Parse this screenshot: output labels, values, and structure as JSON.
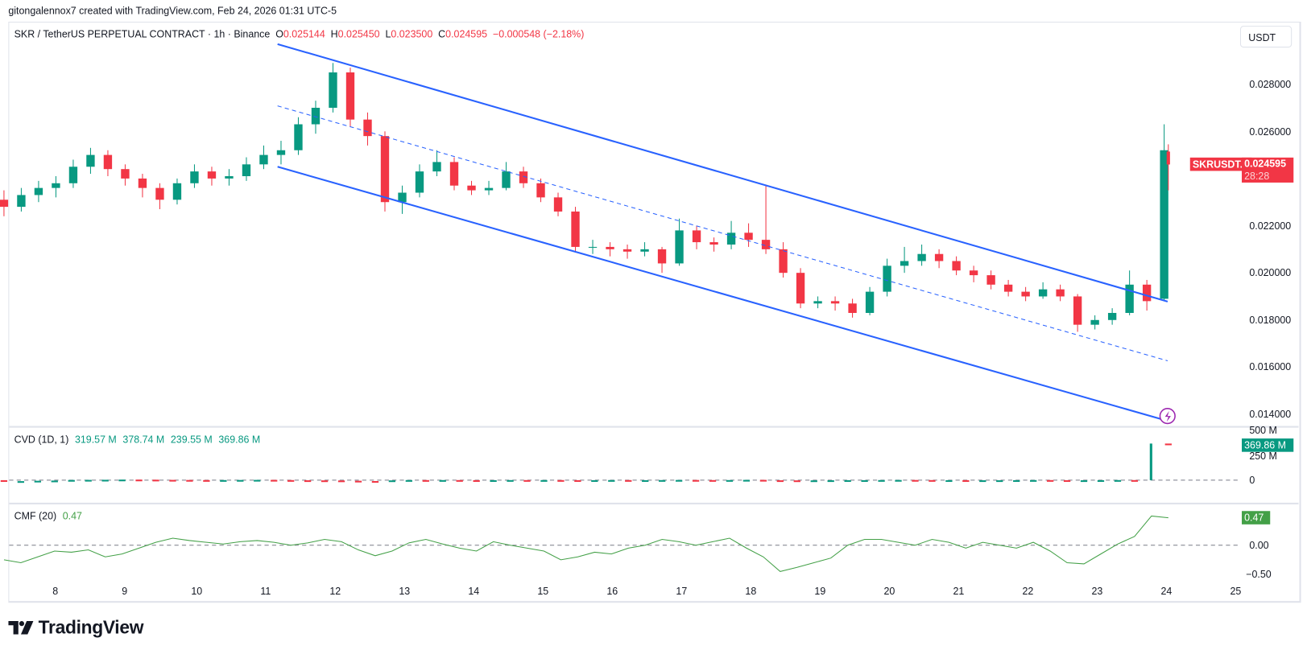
{
  "credit": "gitongalennox7 created with TradingView.com, Feb 24, 2026 01:31 UTC-5",
  "symbol_line": {
    "title": "SKR / TetherUS PERPETUAL CONTRACT · 1h · Binance",
    "o_label": "O",
    "o": "0.025144",
    "h_label": "H",
    "h": "0.025450",
    "l_label": "L",
    "l": "0.023500",
    "c_label": "C",
    "c": "0.024595",
    "change": "−0.000548 (−2.18%)"
  },
  "currency_button": "USDT",
  "price_tag": {
    "symbol": "SKRUSDT.P",
    "price": "0.024595",
    "countdown": "28:28"
  },
  "colors": {
    "up": "#089981",
    "down": "#f23645",
    "channel": "#2962ff",
    "cmf": "#43a047",
    "alert": "#9c27b0"
  },
  "alert_icon": "lightning-icon",
  "cvd": {
    "label": "CVD (1D, 1)",
    "values": [
      "319.57 M",
      "378.74 M",
      "239.55 M",
      "369.86 M"
    ],
    "tag": "369.86 M",
    "ticks": [
      "500 M",
      "250 M",
      "0"
    ]
  },
  "cmf": {
    "label": "CMF (20)",
    "value": "0.47",
    "tag": "0.47",
    "ticks": [
      "0.00",
      "−0.50"
    ]
  },
  "logo_text": "TradingView",
  "chart_data": {
    "type": "candlestick",
    "interval_drawn": "6h",
    "price_axis": {
      "ticks": [
        "0.028000",
        "0.026000",
        "0.022000",
        "0.020000",
        "0.018000",
        "0.016000",
        "0.014000"
      ],
      "tick_values": [
        0.028,
        0.026,
        0.022,
        0.02,
        0.018,
        0.016,
        0.014
      ]
    },
    "x_axis": {
      "ticks": [
        "8",
        "9",
        "10",
        "11",
        "12",
        "13",
        "14",
        "15",
        "16",
        "17",
        "18",
        "19",
        "20",
        "21",
        "22",
        "23",
        "24",
        "25"
      ],
      "tick_days": [
        8,
        9,
        10,
        11,
        12,
        13,
        14,
        15,
        16,
        17,
        18,
        19,
        20,
        21,
        22,
        23,
        24,
        25
      ]
    },
    "start_day": 7.25,
    "step_days": 0.25,
    "ohlc": [
      [
        0.0231,
        0.0235,
        0.0224,
        0.0228
      ],
      [
        0.0228,
        0.0236,
        0.0226,
        0.0233
      ],
      [
        0.0233,
        0.0239,
        0.023,
        0.0236
      ],
      [
        0.0236,
        0.0241,
        0.0232,
        0.0238
      ],
      [
        0.0238,
        0.0248,
        0.0236,
        0.0245
      ],
      [
        0.0245,
        0.0253,
        0.0242,
        0.025
      ],
      [
        0.025,
        0.0252,
        0.0241,
        0.0244
      ],
      [
        0.0244,
        0.0246,
        0.0237,
        0.024
      ],
      [
        0.024,
        0.0242,
        0.0232,
        0.0236
      ],
      [
        0.0236,
        0.0238,
        0.0227,
        0.0231
      ],
      [
        0.0231,
        0.024,
        0.0229,
        0.0238
      ],
      [
        0.0238,
        0.0246,
        0.0236,
        0.0243
      ],
      [
        0.0243,
        0.0245,
        0.0237,
        0.024
      ],
      [
        0.024,
        0.0244,
        0.0237,
        0.0241
      ],
      [
        0.0241,
        0.0249,
        0.0239,
        0.0246
      ],
      [
        0.0246,
        0.0254,
        0.0244,
        0.025
      ],
      [
        0.025,
        0.0256,
        0.0246,
        0.0252
      ],
      [
        0.0252,
        0.0266,
        0.025,
        0.0263
      ],
      [
        0.0263,
        0.0273,
        0.0259,
        0.027
      ],
      [
        0.027,
        0.0289,
        0.0268,
        0.0285
      ],
      [
        0.0285,
        0.0287,
        0.0262,
        0.0265
      ],
      [
        0.0265,
        0.0268,
        0.0254,
        0.0258
      ],
      [
        0.0258,
        0.026,
        0.0226,
        0.023
      ],
      [
        0.023,
        0.0237,
        0.0225,
        0.0234
      ],
      [
        0.0234,
        0.0246,
        0.0232,
        0.0243
      ],
      [
        0.0243,
        0.0252,
        0.0241,
        0.0247
      ],
      [
        0.0247,
        0.0249,
        0.0235,
        0.0237
      ],
      [
        0.0237,
        0.0239,
        0.0233,
        0.0235
      ],
      [
        0.0235,
        0.0239,
        0.0233,
        0.0236
      ],
      [
        0.0236,
        0.0247,
        0.0235,
        0.0243
      ],
      [
        0.0243,
        0.0245,
        0.0236,
        0.0238
      ],
      [
        0.0238,
        0.024,
        0.023,
        0.0232
      ],
      [
        0.0232,
        0.0234,
        0.0224,
        0.0226
      ],
      [
        0.0226,
        0.0228,
        0.0209,
        0.0211
      ],
      [
        0.0211,
        0.0214,
        0.0208,
        0.0211
      ],
      [
        0.0211,
        0.0213,
        0.0207,
        0.021
      ],
      [
        0.021,
        0.0212,
        0.0206,
        0.0209
      ],
      [
        0.0209,
        0.0213,
        0.0207,
        0.021
      ],
      [
        0.021,
        0.0211,
        0.02,
        0.0204
      ],
      [
        0.0204,
        0.0223,
        0.0203,
        0.0218
      ],
      [
        0.0218,
        0.022,
        0.021,
        0.0213
      ],
      [
        0.0213,
        0.0215,
        0.0209,
        0.0212
      ],
      [
        0.0212,
        0.0222,
        0.021,
        0.0217
      ],
      [
        0.0217,
        0.0221,
        0.0211,
        0.0214
      ],
      [
        0.0214,
        0.0237,
        0.0208,
        0.021
      ],
      [
        0.021,
        0.0213,
        0.0198,
        0.02
      ],
      [
        0.02,
        0.0202,
        0.0185,
        0.0187
      ],
      [
        0.0187,
        0.019,
        0.0185,
        0.0188
      ],
      [
        0.0188,
        0.019,
        0.0184,
        0.0187
      ],
      [
        0.0187,
        0.0189,
        0.0181,
        0.0183
      ],
      [
        0.0183,
        0.0194,
        0.0182,
        0.0192
      ],
      [
        0.0192,
        0.0206,
        0.019,
        0.0203
      ],
      [
        0.0203,
        0.0211,
        0.02,
        0.0205
      ],
      [
        0.0205,
        0.0212,
        0.0203,
        0.0208
      ],
      [
        0.0208,
        0.021,
        0.0202,
        0.0205
      ],
      [
        0.0205,
        0.0207,
        0.0199,
        0.0201
      ],
      [
        0.0201,
        0.0203,
        0.0196,
        0.0199
      ],
      [
        0.0199,
        0.0201,
        0.0193,
        0.0195
      ],
      [
        0.0195,
        0.0197,
        0.019,
        0.0192
      ],
      [
        0.0192,
        0.0194,
        0.0188,
        0.019
      ],
      [
        0.019,
        0.0196,
        0.0189,
        0.0193
      ],
      [
        0.0193,
        0.0195,
        0.0188,
        0.019
      ],
      [
        0.019,
        0.0191,
        0.0175,
        0.0178
      ],
      [
        0.0178,
        0.0182,
        0.0176,
        0.018
      ],
      [
        0.018,
        0.0185,
        0.0178,
        0.0183
      ],
      [
        0.0183,
        0.0201,
        0.0182,
        0.0195
      ],
      [
        0.0195,
        0.0197,
        0.0184,
        0.0188
      ],
      [
        0.0189,
        0.0263,
        0.0188,
        0.0252
      ],
      [
        0.025144,
        0.02545,
        0.0235,
        0.024595
      ]
    ],
    "channel": {
      "upper": {
        "start": [
          11.2,
          0.0297
        ],
        "end": [
          24.05,
          0.01878
        ]
      },
      "median": {
        "start": [
          11.2,
          0.02708
        ],
        "end": [
          24.05,
          0.01627
        ],
        "style": "dashed"
      },
      "lower": {
        "start": [
          11.2,
          0.0245
        ],
        "end": [
          24.05,
          0.01372
        ]
      }
    },
    "cvd_series_millions": [
      -12,
      -10,
      -6,
      -4,
      2,
      3,
      4,
      6,
      5,
      3,
      2,
      1,
      0,
      1,
      2,
      3,
      1,
      -1,
      -2,
      -3,
      -6,
      -9,
      -12,
      -2,
      1,
      0,
      1,
      0,
      -1,
      0,
      1,
      0,
      1,
      0,
      -1,
      0,
      1,
      0,
      0,
      1,
      2,
      1,
      0,
      1,
      3,
      -1,
      -2,
      -3,
      -2,
      -1,
      0,
      0,
      1,
      2,
      1,
      0,
      0,
      -1,
      -1,
      -1,
      0,
      1,
      0,
      -1,
      -1,
      0,
      1,
      0,
      378.74,
      369.86
    ],
    "cmf_series": [
      -0.25,
      -0.3,
      -0.2,
      -0.1,
      -0.12,
      -0.08,
      -0.2,
      -0.15,
      -0.05,
      0.05,
      0.12,
      0.08,
      0.05,
      0.02,
      0.06,
      0.08,
      0.05,
      0.0,
      0.04,
      0.1,
      0.06,
      -0.08,
      -0.18,
      -0.1,
      0.04,
      0.1,
      0.02,
      -0.05,
      -0.1,
      0.06,
      0.0,
      -0.05,
      -0.1,
      -0.25,
      -0.2,
      -0.12,
      -0.15,
      -0.05,
      0.0,
      0.1,
      0.06,
      0.0,
      0.06,
      0.12,
      -0.05,
      -0.2,
      -0.45,
      -0.38,
      -0.3,
      -0.22,
      0.0,
      0.1,
      0.1,
      0.05,
      0.0,
      0.1,
      0.05,
      -0.05,
      0.05,
      0.0,
      -0.05,
      0.05,
      -0.1,
      -0.3,
      -0.32,
      -0.15,
      0.02,
      0.15,
      0.5,
      0.47
    ]
  }
}
